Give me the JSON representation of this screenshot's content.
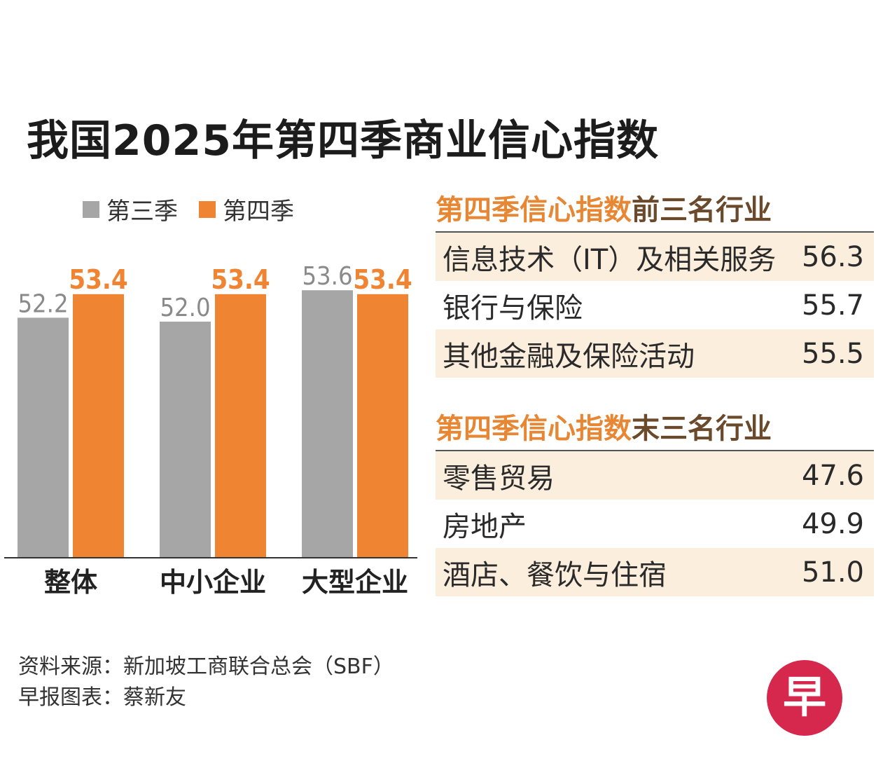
{
  "title": "我国2025年第四季商业信心指数",
  "colors": {
    "q3": "#a6a6a6",
    "q4": "#ef8533",
    "highlight": "#e88733",
    "dark_heading": "#6b4a2c",
    "row_shade": "#fbeedd",
    "logo": "#d6284d"
  },
  "legend": {
    "q3": "第三季",
    "q4": "第四季"
  },
  "chart_data": {
    "type": "bar",
    "categories": [
      "整体",
      "中小企业",
      "大型企业"
    ],
    "series": [
      {
        "name": "第三季",
        "values": [
          52.2,
          52.0,
          53.6
        ],
        "labels": [
          "52.2",
          "52.0",
          "53.6"
        ]
      },
      {
        "name": "第四季",
        "values": [
          53.4,
          53.4,
          53.4
        ],
        "labels": [
          "53.4",
          "53.4",
          "53.4"
        ]
      }
    ],
    "ylim": [
      40,
      54
    ],
    "title": "我国2025年第四季商业信心指数",
    "legend_position": "top-left"
  },
  "top_panel": {
    "heading_highlight": "第四季信心指数",
    "heading_rest": "前三名行业",
    "rows": [
      {
        "label": "信息技术（IT）及相关服务",
        "value": "56.3"
      },
      {
        "label": "银行与保险",
        "value": "55.7"
      },
      {
        "label": "其他金融及保险活动",
        "value": "55.5"
      }
    ]
  },
  "bottom_panel": {
    "heading_highlight": "第四季信心指数",
    "heading_rest": "末三名行业",
    "rows": [
      {
        "label": "零售贸易",
        "value": "47.6"
      },
      {
        "label": "房地产",
        "value": "49.9"
      },
      {
        "label": "酒店、餐饮与住宿",
        "value": "51.0"
      }
    ]
  },
  "source": {
    "line1": "资料来源：新加坡工商联合总会（SBF）",
    "line2": "早报图表：蔡新友"
  },
  "logo": {
    "char": "早"
  }
}
